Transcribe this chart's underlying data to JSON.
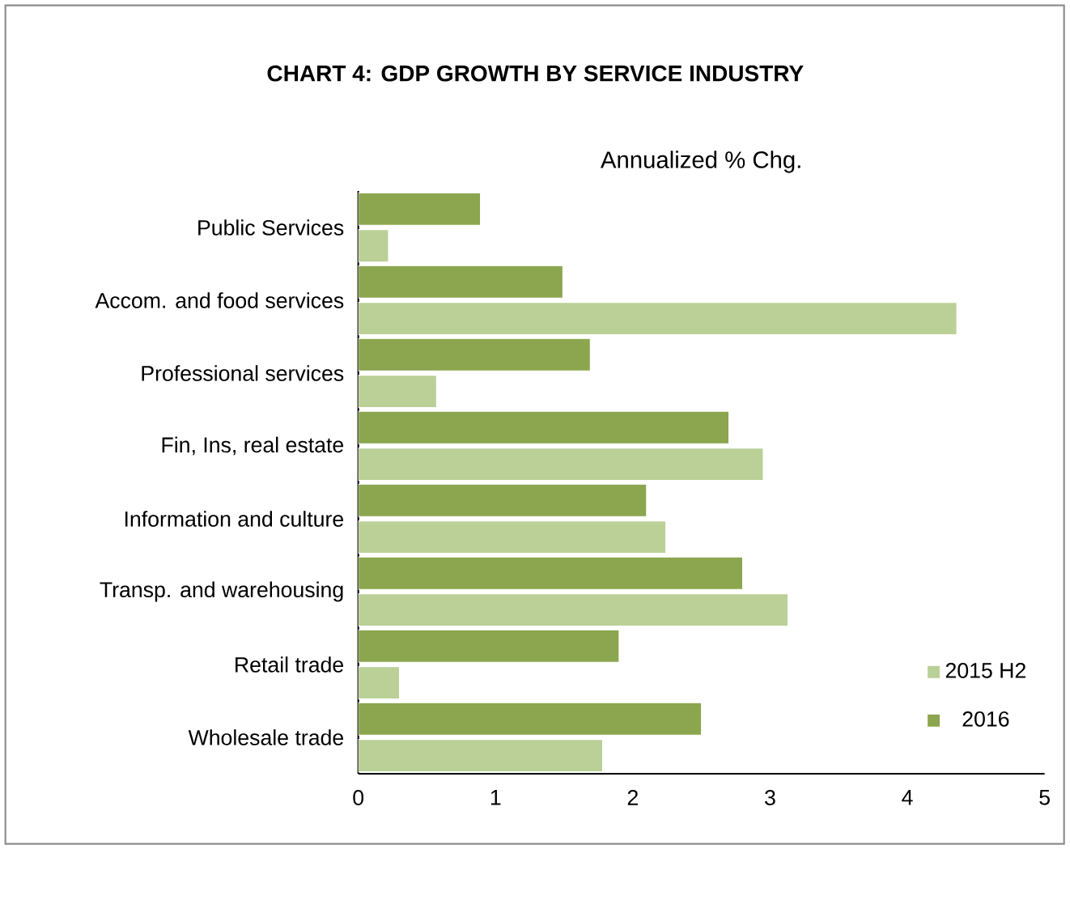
{
  "chart_data": {
    "type": "bar",
    "orientation": "horizontal",
    "title": "CHART 4: GDP GROWTH BY SERVICE INDUSTRY",
    "subtitle": "Annualized % Chg.",
    "categories": [
      "Public Services",
      "Accom. and food services",
      "Professional services",
      "Fin, Ins, real estate",
      "Information and culture",
      "Transp. and warehousing",
      "Retail trade",
      "Wholesale trade"
    ],
    "series": [
      {
        "name": "2015 H2",
        "color": "#bad097",
        "values": [
          0.22,
          4.36,
          0.57,
          2.95,
          2.24,
          3.13,
          0.3,
          1.78
        ]
      },
      {
        "name": "2016",
        "color": "#8ba64f",
        "values": [
          0.89,
          1.49,
          1.69,
          2.7,
          2.1,
          2.8,
          1.9,
          2.5
        ]
      }
    ],
    "xlim": [
      0,
      5
    ],
    "xticks": [
      0,
      1,
      2,
      3,
      4,
      5
    ],
    "grid": false,
    "legend": "bottom right"
  }
}
